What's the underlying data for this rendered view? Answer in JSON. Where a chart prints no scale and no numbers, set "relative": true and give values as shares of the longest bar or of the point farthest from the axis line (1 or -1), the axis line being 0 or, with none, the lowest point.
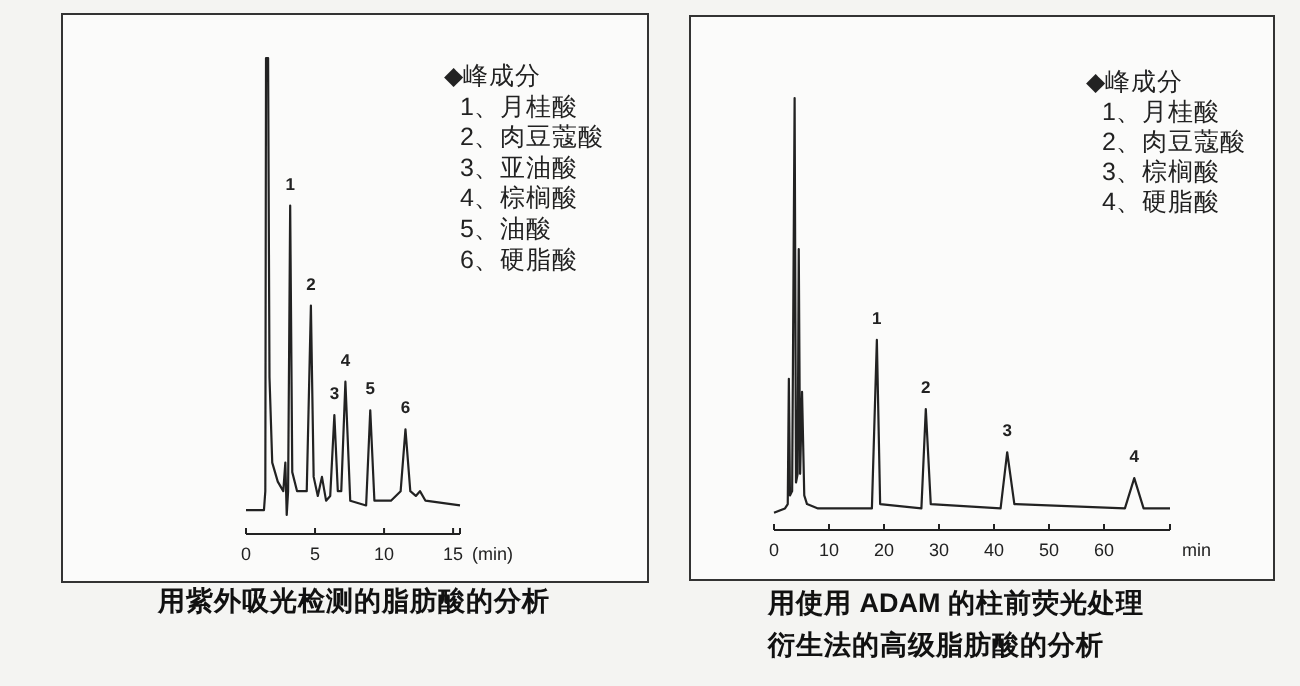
{
  "chart_data": [
    {
      "type": "line",
      "title": "用紫外吸光检测的脂肪酸的分析",
      "xlabel": "(min)",
      "relative": true,
      "tick_labels": "x",
      "xlim": [
        0,
        15.5
      ],
      "xticks": [
        0,
        5,
        10,
        15
      ],
      "series": [
        {
          "color": "#222222",
          "x": [
            0,
            1.3,
            1.4,
            1.45,
            1.6,
            1.7,
            1.9,
            2.3,
            2.7,
            2.85,
            2.95,
            3.05,
            3.2,
            3.35,
            3.7,
            4.4,
            4.7,
            4.9,
            5.2,
            5.5,
            5.8,
            6.1,
            6.4,
            6.65,
            6.9,
            7.2,
            7.55,
            8.7,
            9.0,
            9.3,
            10.5,
            11.2,
            11.55,
            11.9,
            12.3,
            12.6,
            13.0,
            15.5
          ],
          "values": [
            0.05,
            0.05,
            0.09,
            1,
            1,
            0.33,
            0.15,
            0.11,
            0.09,
            0.15,
            0.04,
            0.09,
            0.69,
            0.13,
            0.09,
            0.09,
            0.48,
            0.12,
            0.08,
            0.12,
            0.07,
            0.08,
            0.25,
            0.09,
            0.09,
            0.32,
            0.07,
            0.06,
            0.26,
            0.07,
            0.07,
            0.09,
            0.22,
            0.09,
            0.08,
            0.09,
            0.07,
            0.06
          ]
        }
      ],
      "annotations": [
        "◆峰成分",
        "1、月桂酸",
        "2、肉豆蔻酸",
        "3、亚油酸",
        "4、棕榈酸",
        "5、油酸",
        "6、硬脂酸",
        {
          "text": "1",
          "x": 3.2,
          "y": 0.69
        },
        {
          "text": "2",
          "x": 4.7,
          "y": 0.48
        },
        {
          "text": "3",
          "x": 6.4,
          "y": 0.25
        },
        {
          "text": "4",
          "x": 7.2,
          "y": 0.32
        },
        {
          "text": "5",
          "x": 9.0,
          "y": 0.26
        },
        {
          "text": "6",
          "x": 11.55,
          "y": 0.22
        }
      ]
    },
    {
      "type": "line",
      "title": "用使用 ADAM 的柱前荧光处理衍生法的高级脂肪酸的分析",
      "xlabel": "min",
      "relative": true,
      "tick_labels": "x",
      "xlim": [
        0,
        72
      ],
      "xticks": [
        0,
        10,
        20,
        30,
        40,
        50,
        60
      ],
      "series": [
        {
          "color": "#222222",
          "x": [
            0,
            2,
            2.5,
            2.7,
            2.9,
            3.3,
            3.75,
            4.0,
            4.3,
            4.5,
            4.75,
            5.1,
            5.5,
            6,
            8,
            17.8,
            18.7,
            19.3,
            26.8,
            27.6,
            28.5,
            41.2,
            42.4,
            43.7,
            63.8,
            65.5,
            67.2,
            72
          ],
          "values": [
            0.04,
            0.05,
            0.06,
            0.35,
            0.08,
            0.09,
            1,
            0.11,
            0.13,
            0.65,
            0.13,
            0.32,
            0.08,
            0.06,
            0.05,
            0.05,
            0.44,
            0.06,
            0.05,
            0.28,
            0.06,
            0.05,
            0.18,
            0.06,
            0.05,
            0.12,
            0.05,
            0.05
          ]
        }
      ],
      "annotations": [
        "◆峰成分",
        "1、月桂酸",
        "2、肉豆蔻酸",
        "3、棕榈酸",
        "4、硬脂酸",
        {
          "text": "1",
          "x": 18.7,
          "y": 0.44
        },
        {
          "text": "2",
          "x": 27.6,
          "y": 0.28
        },
        {
          "text": "3",
          "x": 42.4,
          "y": 0.18
        },
        {
          "text": "4",
          "x": 65.5,
          "y": 0.12
        }
      ]
    }
  ]
}
